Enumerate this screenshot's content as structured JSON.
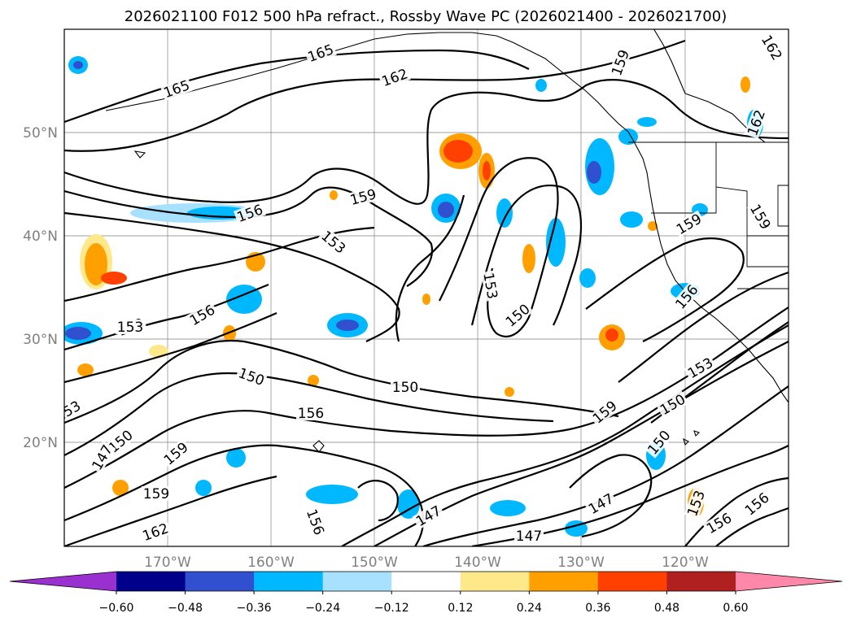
{
  "title": "2026021100 F012 500 hPa refract., Rossby Wave PC (2026021400 - 2026021700)",
  "lat_labels": [
    "50°N",
    "40°N",
    "30°N",
    "20°N"
  ],
  "lon_labels": [
    "170°W",
    "160°W",
    "150°W",
    "140°W",
    "130°W",
    "120°W"
  ],
  "colorbar": {
    "ticks": [
      "−0.60",
      "−0.48",
      "−0.36",
      "−0.24",
      "−0.12",
      "0.12",
      "0.24",
      "0.36",
      "0.48",
      "0.60"
    ],
    "colors": {
      "under": "#9b30d0",
      "bins": [
        "#00008b",
        "#3050d0",
        "#00b8ff",
        "#a8e0ff",
        "#ffffff",
        "#ffe88a",
        "#ffa000",
        "#ff4000",
        "#b02020"
      ],
      "over": "#ff88aa"
    },
    "extend": "both"
  },
  "contour_labels": [
    "165",
    "165",
    "162",
    "159",
    "162",
    "162",
    "159",
    "156",
    "153",
    "159",
    "159",
    "156",
    "153",
    "153",
    "150",
    "153",
    "156",
    "150",
    "150",
    "156",
    "159",
    "150",
    "153",
    "150",
    "150",
    "147",
    "159",
    "159",
    "162",
    "156",
    "147",
    "147",
    "153",
    "147",
    "156",
    "156",
    "153",
    "159",
    "156"
  ]
}
